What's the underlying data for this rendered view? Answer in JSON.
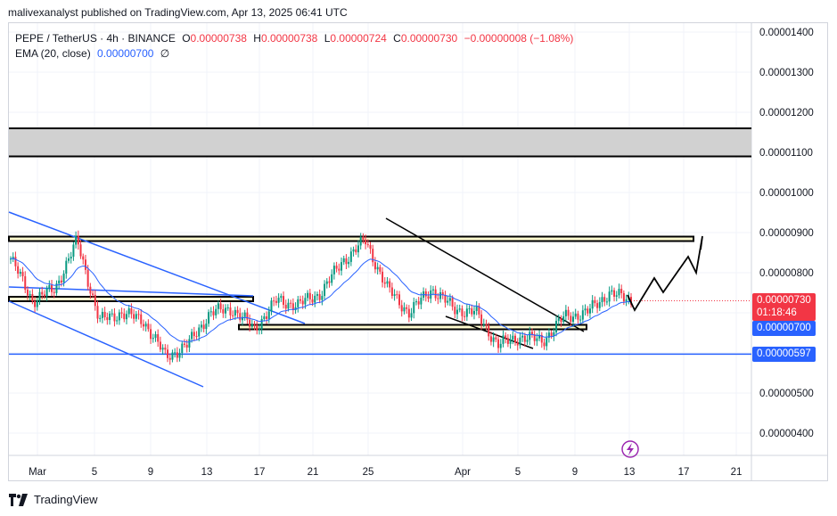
{
  "header": {
    "publisher_line": "malivexanalyst published on TradingView.com, Apr 13, 2025 06:41 UTC"
  },
  "legend": {
    "symbol": "PEPE / TetherUS · 4h · BINANCE",
    "open_label": "O",
    "open": "0.00000738",
    "high_label": "H",
    "high": "0.00000738",
    "low_label": "L",
    "low": "0.00000724",
    "close_label": "C",
    "close": "0.00000730",
    "change": "−0.00000008 (−1.08%)",
    "ema_label": "EMA (20, close)",
    "ema_value": "0.00000700",
    "ema_extra": "∅"
  },
  "price_tags": {
    "last_price": "0.00000730",
    "countdown": "01:18:46",
    "ema_tag": "0.00000700",
    "support_tag": "0.00000597"
  },
  "footer": {
    "brand": "TradingView"
  },
  "colors": {
    "up": "#089981",
    "down": "#f23645",
    "ema": "#2962ff",
    "channel": "#2962ff",
    "zone_fill": "#d1d1d1",
    "box_outline": "#000000",
    "last_price_bg": "#f23645",
    "ema_tag_bg": "#2962ff",
    "support_bg": "#2962ff",
    "lightning": "#9c27b0"
  },
  "chart_data": {
    "type": "candlestick",
    "title": "PEPE / TetherUS · 4h · BINANCE",
    "y_axis": {
      "ticks": [
        4e-06,
        5e-06,
        6e-06,
        7e-06,
        8e-06,
        9e-06,
        1e-05,
        1.1e-05,
        1.2e-05,
        1.3e-05,
        1.4e-05
      ],
      "tick_labels": [
        "0.00000400",
        "0.00000500",
        "0.00000600",
        "0.00000700",
        "0.00000800",
        "0.00000900",
        "0.00001000",
        "0.00001100",
        "0.00001200",
        "0.00001300",
        "0.00001400"
      ],
      "range": [
        3.7e-06,
        1.42e-05
      ]
    },
    "x_axis": {
      "tick_labels": [
        "Mar",
        "5",
        "9",
        "13",
        "17",
        "21",
        "25",
        "Apr",
        "5",
        "9",
        "13",
        "17",
        "21"
      ]
    },
    "close_path_approx": [
      {
        "date": "Feb 28",
        "close": 8.35e-06
      },
      {
        "date": "Mar 1",
        "close": 7.3e-06
      },
      {
        "date": "Mar 2",
        "close": 7.6e-06
      },
      {
        "date": "Mar 3",
        "close": 8.8e-06
      },
      {
        "date": "Mar 4",
        "close": 6.8e-06
      },
      {
        "date": "Mar 6",
        "close": 7e-06
      },
      {
        "date": "Mar 8",
        "close": 6.8e-06
      },
      {
        "date": "Mar 10",
        "close": 5.9e-06
      },
      {
        "date": "Mar 11",
        "close": 6.2e-06
      },
      {
        "date": "Mar 13",
        "close": 7e-06
      },
      {
        "date": "Mar 15",
        "close": 7.1e-06
      },
      {
        "date": "Mar 17",
        "close": 6.6e-06
      },
      {
        "date": "Mar 19",
        "close": 7.3e-06
      },
      {
        "date": "Mar 21",
        "close": 7.2e-06
      },
      {
        "date": "Mar 23",
        "close": 7.5e-06
      },
      {
        "date": "Mar 25",
        "close": 8.3e-06
      },
      {
        "date": "Mar 26",
        "close": 8.8e-06
      },
      {
        "date": "Mar 28",
        "close": 7.6e-06
      },
      {
        "date": "Mar 30",
        "close": 7e-06
      },
      {
        "date": "Apr 1",
        "close": 7.6e-06
      },
      {
        "date": "Apr 3",
        "close": 7.1e-06
      },
      {
        "date": "Apr 5",
        "close": 7e-06
      },
      {
        "date": "Apr 7",
        "close": 6.2e-06
      },
      {
        "date": "Apr 8",
        "close": 6.4e-06
      },
      {
        "date": "Apr 9",
        "close": 6.3e-06
      },
      {
        "date": "Apr 10",
        "close": 6.9e-06
      },
      {
        "date": "Apr 11",
        "close": 7e-06
      },
      {
        "date": "Apr 12",
        "close": 7.5e-06
      },
      {
        "date": "Apr 13",
        "close": 7.3e-06
      }
    ],
    "ema20": 7e-06,
    "last_price": 7.3e-06,
    "zones": {
      "resistance_zone": [
        1.09e-05,
        1.16e-05
      ],
      "upper_box": [
        8.8e-06,
        8.9e-06
      ],
      "mid_left_box": [
        7.3e-06,
        7.4e-06
      ],
      "support_box": [
        6.6e-06,
        6.7e-06
      ],
      "horizontal_support": 5.97e-06
    },
    "grid": true,
    "legend_position": "top-left"
  }
}
